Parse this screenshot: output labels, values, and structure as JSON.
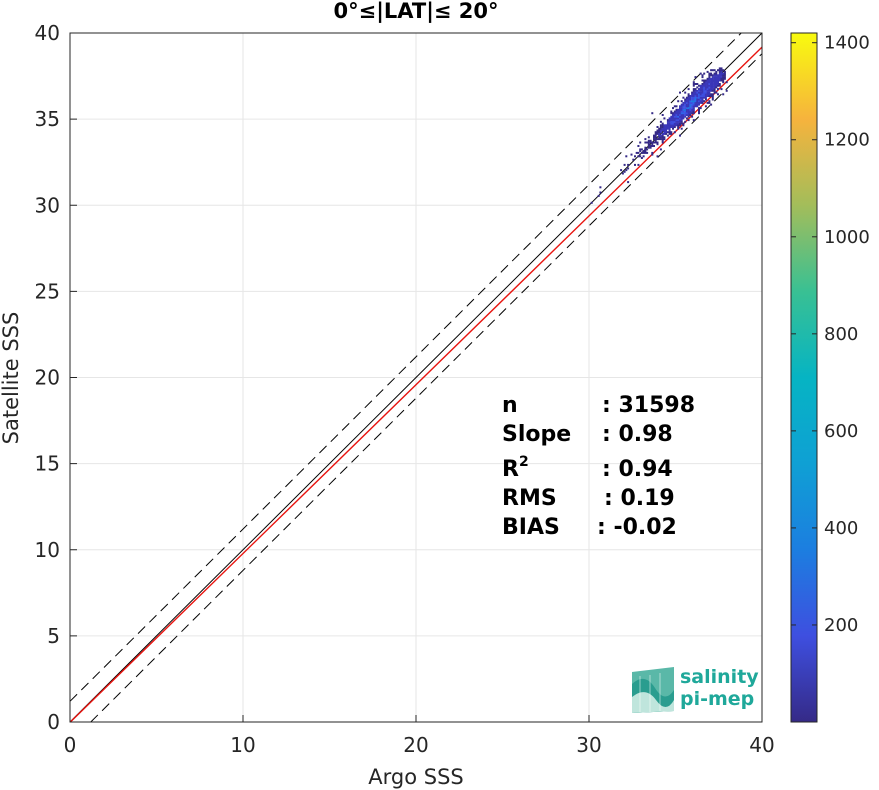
{
  "chart_data": {
    "type": "heatmap",
    "title": "0°≤|LAT|≤ 20°",
    "xlabel": "Argo SSS",
    "ylabel": "Satellite SSS",
    "xlim": [
      0,
      40
    ],
    "ylim": [
      0,
      40
    ],
    "xticks": [
      "0",
      "10",
      "20",
      "30",
      "40"
    ],
    "yticks": [
      "0",
      "5",
      "10",
      "15",
      "20",
      "25",
      "30",
      "35",
      "40"
    ],
    "grid": true,
    "colorbar": {
      "range": [
        0,
        1420
      ],
      "ticks": [
        "200",
        "400",
        "600",
        "800",
        "1000",
        "1200",
        "1400"
      ],
      "colormap": "parula"
    },
    "lines": [
      {
        "kind": "identity",
        "style": "solid",
        "color": "#000000",
        "slope": 1,
        "intercept": 0
      },
      {
        "kind": "upper-bound",
        "style": "dashed",
        "color": "#000000",
        "slope": 1,
        "intercept": 1.2
      },
      {
        "kind": "lower-bound",
        "style": "dashed",
        "color": "#000000",
        "slope": 1,
        "intercept": -1.2
      },
      {
        "kind": "regression",
        "style": "solid",
        "color": "#e8140f",
        "slope": 0.98,
        "intercept": -0.02
      }
    ],
    "density_cluster": {
      "x_range": [
        28.5,
        38
      ],
      "y_range": [
        29,
        38
      ],
      "peak_x": 36,
      "peak_y": 35.8
    },
    "stats": [
      {
        "label": "n",
        "value": ": 31598"
      },
      {
        "label": "Slope",
        "value": ": 0.98"
      },
      {
        "label": "R",
        "sup": "2",
        "value": ": 0.94"
      },
      {
        "label": "RMS",
        "value": ": 0.19"
      },
      {
        "label": "BIAS",
        "value": ": -0.02"
      }
    ]
  },
  "logo": {
    "line1": "salinity",
    "line2": "pi-mep",
    "icon": "salinity-wave-logo-icon"
  }
}
